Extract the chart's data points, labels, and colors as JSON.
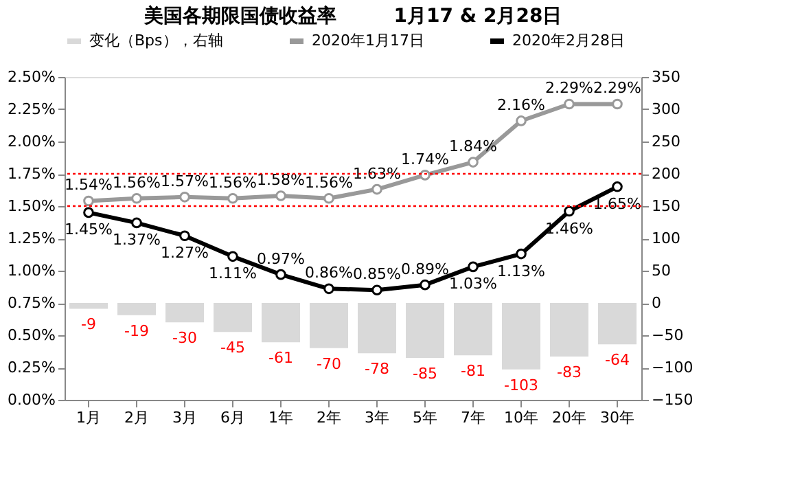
{
  "chart_data": {
    "type": "line",
    "title": "美国各期限国债收益率　　　1月17 & 2月28日",
    "categories": [
      "1月",
      "2月",
      "3月",
      "6月",
      "1年",
      "2年",
      "3年",
      "5年",
      "7年",
      "10年",
      "20年",
      "30年"
    ],
    "series": [
      {
        "name": "变化（Bps），右轴",
        "type": "bar",
        "axis": "y2",
        "color": "#d9d9d9",
        "values": [
          -9,
          -19,
          -30,
          -45,
          -61,
          -70,
          -78,
          -85,
          -81,
          -103,
          -83,
          -64
        ],
        "value_labels": [
          "-9",
          "-19",
          "-30",
          "-45",
          "-61",
          "-70",
          "-78",
          "-85",
          "-81",
          "-103",
          "-83",
          "-64"
        ]
      },
      {
        "name": "2020年1月17日",
        "color": "#999999",
        "values": [
          1.54,
          1.56,
          1.57,
          1.56,
          1.58,
          1.56,
          1.63,
          1.74,
          1.84,
          2.16,
          2.29,
          2.29
        ],
        "value_labels": [
          "1.54%",
          "1.56%",
          "1.57%",
          "1.56%",
          "1.58%",
          "1.56%",
          "1.63%",
          "1.74%",
          "1.84%",
          "2.16%",
          "2.29%",
          "2.29%"
        ]
      },
      {
        "name": "2020年2月28日",
        "color": "#000000",
        "values": [
          1.45,
          1.37,
          1.27,
          1.11,
          0.97,
          0.86,
          0.85,
          0.89,
          1.03,
          1.13,
          1.46,
          1.65
        ],
        "value_labels": [
          "1.45%",
          "1.37%",
          "1.27%",
          "1.11%",
          "0.97%",
          "0.86%",
          "0.85%",
          "0.89%",
          "1.03%",
          "1.13%",
          "1.46%",
          "1.65%"
        ]
      }
    ],
    "ylim": [
      0,
      2.5
    ],
    "yticks": [
      {
        "value": 0,
        "label": "0.00%"
      },
      {
        "value": 0.25,
        "label": "0.25%"
      },
      {
        "value": 0.5,
        "label": "0.50%"
      },
      {
        "value": 0.75,
        "label": "0.75%"
      },
      {
        "value": 1.0,
        "label": "1.00%"
      },
      {
        "value": 1.25,
        "label": "1.25%"
      },
      {
        "value": 1.5,
        "label": "1.50%"
      },
      {
        "value": 1.75,
        "label": "1.75%"
      },
      {
        "value": 2.0,
        "label": "2.00%"
      },
      {
        "value": 2.25,
        "label": "2.25%"
      },
      {
        "value": 2.5,
        "label": "2.50%"
      }
    ],
    "y2lim": [
      -150,
      350
    ],
    "y2ticks": [
      -150,
      -100,
      -50,
      0,
      50,
      100,
      150,
      200,
      250,
      300,
      350
    ],
    "ref_lines": [
      {
        "axis": "y",
        "value": 1.75,
        "color": "#ff0000",
        "line_style": "dotted"
      },
      {
        "axis": "y",
        "value": 1.5,
        "color": "#ff0000",
        "line_style": "dotted"
      }
    ],
    "marker": "circle",
    "line_style": "solid",
    "grid": false,
    "legend": "top"
  }
}
